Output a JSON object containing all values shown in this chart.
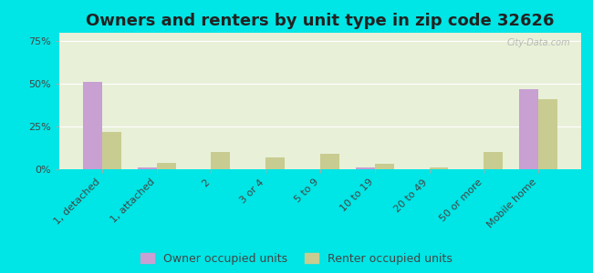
{
  "title": "Owners and renters by unit type in zip code 32626",
  "categories": [
    "1, detached",
    "1, attached",
    "2",
    "3 or 4",
    "5 to 9",
    "10 to 19",
    "20 to 49",
    "50 or more",
    "Mobile home"
  ],
  "owner_values": [
    51,
    1,
    0,
    0,
    0,
    1,
    0,
    0,
    47
  ],
  "renter_values": [
    22,
    4,
    10,
    7,
    9,
    3,
    1,
    10,
    41
  ],
  "owner_color": "#c8a0d2",
  "renter_color": "#c8cc90",
  "background_color": "#e8f0d8",
  "outer_background": "#00e5e5",
  "yticks": [
    0,
    25,
    50,
    75
  ],
  "ytick_labels": [
    "0%",
    "25%",
    "50%",
    "75%"
  ],
  "ylim": [
    0,
    80
  ],
  "bar_width": 0.35,
  "title_fontsize": 13,
  "legend_fontsize": 9,
  "tick_fontsize": 8,
  "watermark": "City-Data.com"
}
